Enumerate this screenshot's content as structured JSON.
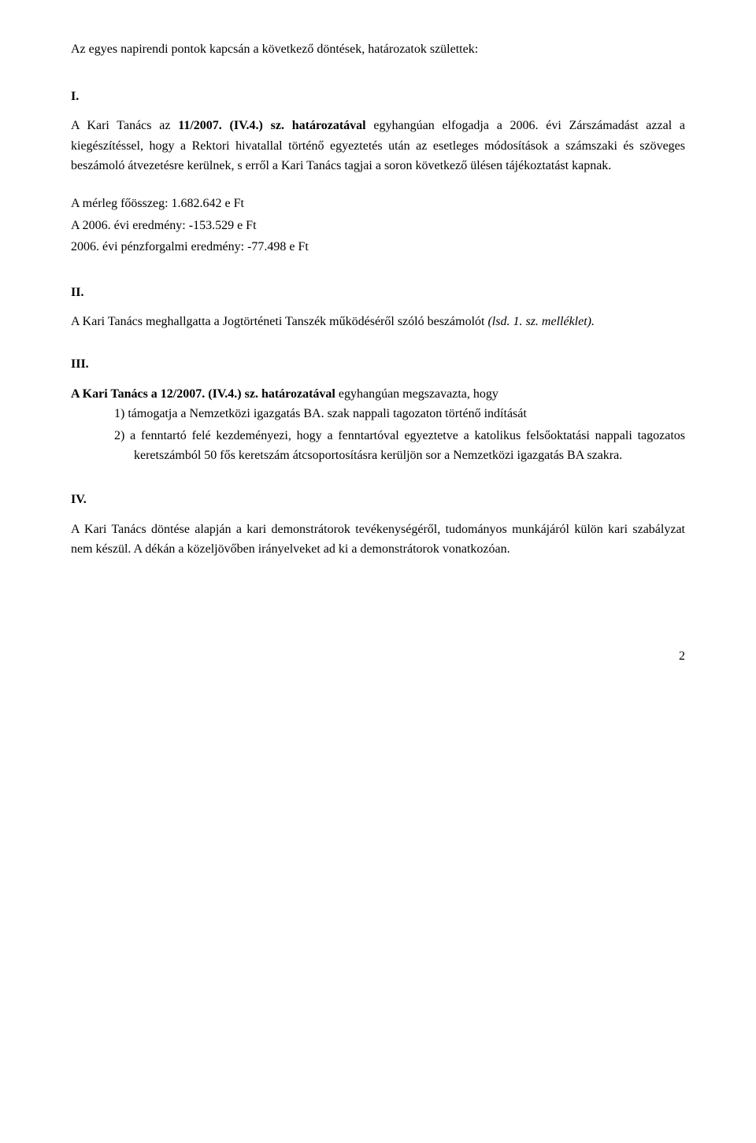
{
  "intro": "Az egyes napirendi pontok kapcsán a következő döntések, határozatok születtek:",
  "sections": {
    "I": {
      "marker": "I.",
      "para1_pre": "A Kari Tanács az ",
      "para1_bold": "11/2007. (IV.4.) sz. határozatával",
      "para1_post": " egyhangúan elfogadja a 2006. évi Zárszámadást azzal a kiegészítéssel, hogy a Rektori hivatallal történő egyeztetés után az esetleges módosítások a számszaki és szöveges beszámoló átvezetésre kerülnek, s erről a Kari Tanács tagjai a soron következő ülésen tájékoztatást kapnak.",
      "fin1": "A mérleg főösszeg: 1.682.642 e Ft",
      "fin2": "A 2006. évi eredmény: -153.529 e Ft",
      "fin3": "2006. évi pénzforgalmi eredmény: -77.498 e Ft"
    },
    "II": {
      "marker": "II.",
      "text_pre": "A Kari Tanács meghallgatta a Jogtörténeti Tanszék működéséről szóló beszámolót ",
      "text_italic": "(lsd. 1. sz. melléklet).",
      "text_post": ""
    },
    "III": {
      "marker": "III.",
      "para1_bold": "A Kari Tanács a 12/2007. (IV.4.) sz. határozatával",
      "para1_post": " egyhangúan megszavazta, hogy",
      "item1": "1) támogatja a Nemzetközi igazgatás BA. szak nappali tagozaton történő indítását",
      "item2": "2) a fenntartó felé kezdeményezi, hogy a fenntartóval egyeztetve a katolikus felsőoktatási nappali tagozatos keretszámból 50 fős keretszám átcsoportosításra kerüljön sor a Nemzetközi igazgatás BA szakra."
    },
    "IV": {
      "marker": "IV.",
      "text": "A Kari Tanács döntése alapján a kari demonstrátorok tevékenységéről, tudományos munkájáról külön kari szabályzat nem készül. A dékán a közeljövőben irányelveket ad ki a demonstrátorok vonatkozóan."
    }
  },
  "page_number": "2"
}
